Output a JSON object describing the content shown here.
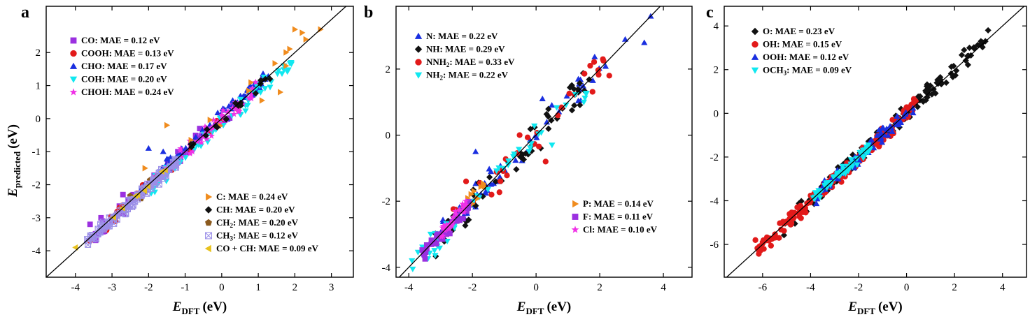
{
  "figure": {
    "ylabel_main": "E",
    "ylabel_sub": "predicted",
    "ylabel_unit": "(eV)",
    "xlabel_main": "E",
    "xlabel_sub": "DFT",
    "xlabel_unit": "(eV)"
  },
  "chart_data": [
    {
      "type": "scatter",
      "panel_label": "a",
      "xlim": [
        -4.8,
        3.6
      ],
      "ylim": [
        -4.8,
        3.4
      ],
      "xticks": [
        -4,
        -3,
        -2,
        -1,
        0,
        1,
        2,
        3
      ],
      "yticks": [
        -4,
        -3,
        -2,
        -1,
        0,
        1,
        2
      ],
      "xtick_labels": [
        "-4",
        "-3",
        "-2",
        "-1",
        "0",
        "1",
        "2",
        "3"
      ],
      "ytick_labels": [
        "-4",
        "-3",
        "-2",
        "-1",
        "0",
        "1",
        "2"
      ],
      "diagonal": true,
      "legend_groups": [
        {
          "position": "top-left",
          "items": [
            {
              "prefix": "CO: MAE = 0.12 eV"
            },
            {
              "prefix": "COOH: MAE = 0.13 eV"
            },
            {
              "prefix": "CHO: MAE = 0.17 eV"
            },
            {
              "prefix": "COH: MAE = 0.20 eV"
            },
            {
              "prefix": "CHOH: MAE = 0.24 eV"
            }
          ]
        },
        {
          "position": "bottom-right",
          "items": [
            {
              "prefix": "C: MAE = 0.24 eV"
            },
            {
              "prefix": "CH: MAE = 0.20 eV"
            },
            {
              "prefix": "CH",
              "sub": "2",
              "suffix": ": MAE = 0.20 eV"
            },
            {
              "prefix": "CH",
              "sub": "3",
              "suffix": ": MAE = 0.12 eV"
            },
            {
              "prefix": "CO + CH: MAE = 0.09 eV"
            }
          ]
        }
      ],
      "series": [
        {
          "name": "CO",
          "marker": "square",
          "color": "#9b30e0",
          "x_range": [
            -3.8,
            0.6
          ],
          "offsets": [
            -0.3,
            0.25
          ],
          "count": 40,
          "extra": [
            [
              -3.6,
              -3.2
            ],
            [
              -3.3,
              -3.0
            ],
            [
              -2.7,
              -2.3
            ],
            [
              -1.2,
              -1.0
            ],
            [
              -0.6,
              -0.3
            ],
            [
              0.3,
              0.4
            ]
          ]
        },
        {
          "name": "COOH",
          "marker": "circle",
          "color": "#e21a1a",
          "x_range": [
            -3.3,
            0.5
          ],
          "offsets": [
            -0.25,
            0.2
          ],
          "count": 25,
          "extra": [
            [
              -3.2,
              -3.3
            ],
            [
              -2.9,
              -3.1
            ],
            [
              -3.6,
              -3.7
            ]
          ]
        },
        {
          "name": "CHO",
          "marker": "triangle-up",
          "color": "#1a2fe0",
          "x_range": [
            -2.2,
            1.3
          ],
          "offsets": [
            -0.2,
            0.3
          ],
          "count": 90,
          "extra": [
            [
              -1.6,
              -1.0
            ],
            [
              -2.0,
              -0.9
            ],
            [
              0.3,
              0.55
            ]
          ]
        },
        {
          "name": "COH",
          "marker": "triangle-down",
          "color": "#10e8f0",
          "x_range": [
            -2.1,
            2.0
          ],
          "offsets": [
            -0.45,
            0.15
          ],
          "count": 70,
          "extra": [
            [
              1.2,
              1.2
            ],
            [
              1.9,
              1.7
            ],
            [
              1.7,
              1.6
            ]
          ]
        },
        {
          "name": "CHOH",
          "marker": "star",
          "color": "#f030e6",
          "x_range": [
            -2.0,
            1.0
          ],
          "offsets": [
            -0.3,
            0.3
          ],
          "count": 60,
          "extra": []
        },
        {
          "name": "C",
          "marker": "triangle-right",
          "color": "#f08c1e",
          "x_range": [
            -2.0,
            2.0
          ],
          "offsets": [
            -0.3,
            0.5
          ],
          "count": 10,
          "extra": [
            [
              2.0,
              2.7
            ],
            [
              2.2,
              2.6
            ],
            [
              2.7,
              2.7
            ],
            [
              2.3,
              2.4
            ],
            [
              1.6,
              0.8
            ],
            [
              -1.5,
              -0.2
            ],
            [
              1.1,
              0.55
            ],
            [
              -2.1,
              -1.5
            ]
          ]
        },
        {
          "name": "CH",
          "marker": "diamond",
          "color": "#111111",
          "x_range": [
            -1.0,
            1.7
          ],
          "offsets": [
            -0.2,
            0.2
          ],
          "count": 18,
          "extra": []
        },
        {
          "name": "CH2",
          "marker": "pentagon",
          "color": "#8b5a1e",
          "x_range": [
            -2.8,
            -1.5
          ],
          "offsets": [
            -0.25,
            0.25
          ],
          "count": 14,
          "extra": []
        },
        {
          "name": "CH3",
          "marker": "boxx",
          "color": "#9b8fe8",
          "x_range": [
            -3.7,
            -1.2
          ],
          "offsets": [
            -0.3,
            0.15
          ],
          "count": 120,
          "extra": []
        },
        {
          "name": "CO + CH",
          "marker": "triangle-left",
          "color": "#e8c21e",
          "x_range": [
            -4.0,
            -1.5
          ],
          "offsets": [
            -0.1,
            0.1
          ],
          "count": 8,
          "extra": [
            [
              -4.0,
              -3.9
            ]
          ]
        }
      ]
    },
    {
      "type": "scatter",
      "panel_label": "b",
      "xlim": [
        -4.4,
        4.9
      ],
      "ylim": [
        -4.3,
        3.9
      ],
      "xticks": [
        -4,
        -2,
        0,
        2,
        4
      ],
      "yticks": [
        -4,
        -2,
        0,
        2
      ],
      "xtick_labels": [
        "-4",
        "-2",
        "0",
        "2",
        "4"
      ],
      "ytick_labels": [
        "-4",
        "-2",
        "0",
        "2"
      ],
      "diagonal": true,
      "legend_groups": [
        {
          "position": "top-left",
          "items": [
            {
              "prefix": "N: MAE = 0.22 eV"
            },
            {
              "prefix": "NH: MAE = 0.29 eV"
            },
            {
              "prefix": "NNH",
              "sub": "2",
              "suffix": ": MAE = 0.33 eV"
            },
            {
              "prefix": "NH",
              "sub": "2",
              "suffix": ": MAE = 0.22 eV"
            }
          ]
        },
        {
          "position": "bottom-right",
          "items": [
            {
              "prefix": "P: MAE = 0.14 eV"
            },
            {
              "prefix": "F: MAE = 0.11 eV"
            },
            {
              "prefix": "Cl: MAE = 0.10 eV"
            }
          ]
        }
      ],
      "series": [
        {
          "name": "N",
          "marker": "triangle-up",
          "color": "#1a2fe0",
          "x_range": [
            -3.0,
            2.2
          ],
          "offsets": [
            -0.5,
            0.6
          ],
          "count": 55,
          "extra": [
            [
              3.6,
              3.6
            ],
            [
              3.4,
              2.8
            ],
            [
              2.8,
              2.9
            ],
            [
              0.2,
              1.1
            ],
            [
              -1.9,
              -0.5
            ]
          ]
        },
        {
          "name": "NH",
          "marker": "diamond",
          "color": "#111111",
          "x_range": [
            -3.3,
            1.7
          ],
          "offsets": [
            -0.6,
            0.6
          ],
          "count": 55,
          "extra": [
            [
              1.2,
              0.9
            ]
          ]
        },
        {
          "name": "NNH2",
          "marker": "circle",
          "color": "#e21a1a",
          "x_range": [
            -2.8,
            2.3
          ],
          "offsets": [
            -0.6,
            0.6
          ],
          "count": 30,
          "extra": [
            [
              1.7,
              2.1
            ],
            [
              2.3,
              1.8
            ],
            [
              2.1,
              2.3
            ],
            [
              0.3,
              -0.8
            ],
            [
              -2.2,
              -1.4
            ],
            [
              -1.4,
              -1.8
            ]
          ]
        },
        {
          "name": "NH2",
          "marker": "triangle-down",
          "color": "#10e8f0",
          "x_range": [
            -3.9,
            1.7
          ],
          "offsets": [
            -0.5,
            0.4
          ],
          "count": 45,
          "extra": [
            [
              0.5,
              -0.3
            ],
            [
              1.5,
              1.0
            ],
            [
              -3.9,
              -3.8
            ]
          ]
        },
        {
          "name": "P",
          "marker": "triangle-right",
          "color": "#f08c1e",
          "x_range": [
            -2.9,
            -1.6
          ],
          "offsets": [
            -0.2,
            0.3
          ],
          "count": 14,
          "extra": []
        },
        {
          "name": "F",
          "marker": "square",
          "color": "#9b30e0",
          "x_range": [
            -3.6,
            -2.1
          ],
          "offsets": [
            -0.3,
            0.2
          ],
          "count": 45,
          "extra": []
        },
        {
          "name": "Cl",
          "marker": "star",
          "color": "#f030e6",
          "x_range": [
            -3.0,
            -2.2
          ],
          "offsets": [
            -0.2,
            0.25
          ],
          "count": 30,
          "extra": []
        }
      ]
    },
    {
      "type": "scatter",
      "panel_label": "c",
      "xlim": [
        -7.6,
        5.0
      ],
      "ylim": [
        -7.5,
        4.9
      ],
      "xticks": [
        -6,
        -4,
        -2,
        0,
        2,
        4
      ],
      "yticks": [
        -6,
        -4,
        -2,
        0,
        2,
        4
      ],
      "xtick_labels": [
        "-6",
        "-4",
        "-2",
        "0",
        "2",
        "4"
      ],
      "ytick_labels": [
        "-6",
        "-4",
        "-2",
        "0",
        "2",
        "4"
      ],
      "diagonal": true,
      "legend_groups": [
        {
          "position": "top-left",
          "items": [
            {
              "prefix": "O: MAE = 0.23 eV"
            },
            {
              "prefix": "OH: MAE = 0.15 eV"
            },
            {
              "prefix": "OOH: MAE = 0.12 eV"
            },
            {
              "prefix": "OCH",
              "sub": "3",
              "suffix": ": MAE = 0.09 eV"
            }
          ]
        }
      ],
      "series": [
        {
          "name": "O",
          "marker": "diamond",
          "color": "#111111",
          "x_range": [
            -5.2,
            3.3
          ],
          "offsets": [
            -0.5,
            0.5
          ],
          "count": 140,
          "extra": [
            [
              3.4,
              3.8
            ],
            [
              3.1,
              3.3
            ],
            [
              2.4,
              2.9
            ]
          ]
        },
        {
          "name": "OH",
          "marker": "circle",
          "color": "#e21a1a",
          "x_range": [
            -6.3,
            0.5
          ],
          "offsets": [
            -0.45,
            0.45
          ],
          "count": 150,
          "extra": [
            [
              -6.3,
              -5.8
            ],
            [
              -6.0,
              -5.9
            ]
          ]
        },
        {
          "name": "OOH",
          "marker": "triangle-up",
          "color": "#1a2fe0",
          "x_range": [
            -3.8,
            0.3
          ],
          "offsets": [
            -0.4,
            0.4
          ],
          "count": 90,
          "extra": []
        },
        {
          "name": "OCH3",
          "marker": "triangle-down",
          "color": "#10e8f0",
          "x_range": [
            -3.9,
            -1.5
          ],
          "offsets": [
            -0.3,
            0.3
          ],
          "count": 80,
          "extra": []
        }
      ]
    }
  ]
}
